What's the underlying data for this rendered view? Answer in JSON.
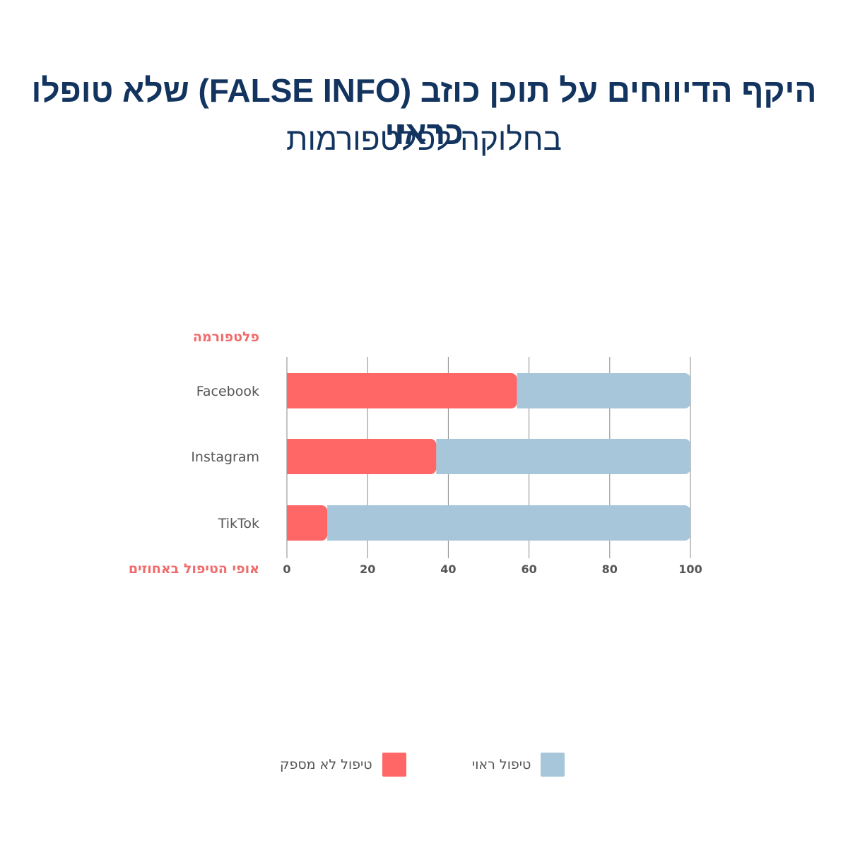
{
  "title": "היקף הדיווחים על תוכן כוזב (FALSE INFO) שלא טופלו כראוי",
  "subtitle": "בחלוקה לפלטפורמות",
  "colors": {
    "title": "#12345f",
    "insufficient": "#ff6666",
    "proper": "#a7c6da",
    "axis_label": "#f06b6b",
    "grid": "#8a8a8a",
    "text": "#555555"
  },
  "chart_data": {
    "type": "bar",
    "orientation": "horizontal",
    "stacked": true,
    "ylabel": "פלטפורמה",
    "xlabel": "אופי הטיפול באחוזים",
    "categories": [
      "Facebook",
      "Instagram",
      "TikTok"
    ],
    "series": [
      {
        "name": "טיפול לא מספק",
        "color": "#ff6666",
        "values": [
          57,
          37,
          10
        ]
      },
      {
        "name": "טיפול ראוי",
        "color": "#a7c6da",
        "values": [
          43,
          63,
          90
        ]
      }
    ],
    "xlim": [
      0,
      100
    ],
    "xticks": [
      0,
      20,
      40,
      60,
      80,
      100
    ],
    "grid": "vertical"
  },
  "legend": [
    {
      "label": "טיפול ראוי",
      "color": "#a7c6da"
    },
    {
      "label": "טיפול לא מספק",
      "color": "#ff6666"
    }
  ]
}
